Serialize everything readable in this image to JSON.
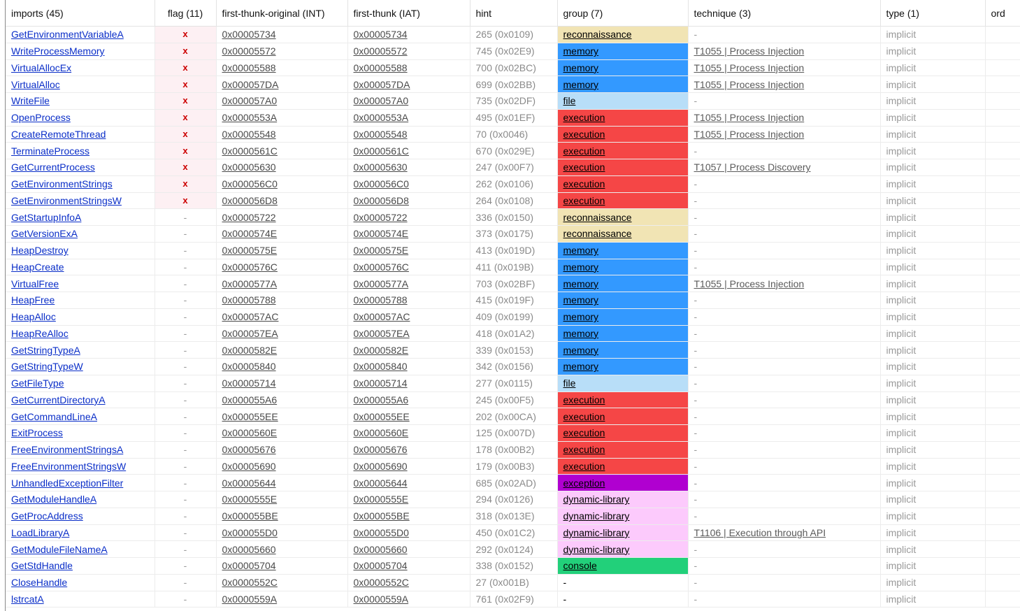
{
  "headers": {
    "imports": "imports (45)",
    "flag": "flag (11)",
    "int": "first-thunk-original (INT)",
    "iat": "first-thunk (IAT)",
    "hint": "hint",
    "group": "group (7)",
    "technique": "technique (3)",
    "type": "type (1)",
    "ordinal": "ord"
  },
  "colors": {
    "reconnaissance": "#f1e4b4",
    "memory": "#3399ff",
    "file": "#b8def8",
    "execution": "#f54646",
    "exception": "#b000d0",
    "dynamic-library": "#fccafc",
    "console": "#22d07a"
  },
  "rows": [
    {
      "name": "GetEnvironmentVariableA",
      "flag": "x",
      "int": "0x00005734",
      "iat": "0x00005734",
      "hint": "265 (0x0109)",
      "group": "reconnaissance",
      "technique": "-",
      "type": "implicit"
    },
    {
      "name": "WriteProcessMemory",
      "flag": "x",
      "int": "0x00005572",
      "iat": "0x00005572",
      "hint": "745 (0x02E9)",
      "group": "memory",
      "technique": "T1055 | Process Injection",
      "type": "implicit"
    },
    {
      "name": "VirtualAllocEx",
      "flag": "x",
      "int": "0x00005588",
      "iat": "0x00005588",
      "hint": "700 (0x02BC)",
      "group": "memory",
      "technique": "T1055 | Process Injection",
      "type": "implicit"
    },
    {
      "name": "VirtualAlloc",
      "flag": "x",
      "int": "0x000057DA",
      "iat": "0x000057DA",
      "hint": "699 (0x02BB)",
      "group": "memory",
      "technique": "T1055 | Process Injection",
      "type": "implicit"
    },
    {
      "name": "WriteFile",
      "flag": "x",
      "int": "0x000057A0",
      "iat": "0x000057A0",
      "hint": "735 (0x02DF)",
      "group": "file",
      "technique": "-",
      "type": "implicit"
    },
    {
      "name": "OpenProcess",
      "flag": "x",
      "int": "0x0000553A",
      "iat": "0x0000553A",
      "hint": "495 (0x01EF)",
      "group": "execution",
      "technique": "T1055 | Process Injection",
      "type": "implicit"
    },
    {
      "name": "CreateRemoteThread",
      "flag": "x",
      "int": "0x00005548",
      "iat": "0x00005548",
      "hint": "70 (0x0046)",
      "group": "execution",
      "technique": "T1055 | Process Injection",
      "type": "implicit"
    },
    {
      "name": "TerminateProcess",
      "flag": "x",
      "int": "0x0000561C",
      "iat": "0x0000561C",
      "hint": "670 (0x029E)",
      "group": "execution",
      "technique": "-",
      "type": "implicit"
    },
    {
      "name": "GetCurrentProcess",
      "flag": "x",
      "int": "0x00005630",
      "iat": "0x00005630",
      "hint": "247 (0x00F7)",
      "group": "execution",
      "technique": "T1057 | Process Discovery",
      "type": "implicit"
    },
    {
      "name": "GetEnvironmentStrings",
      "flag": "x",
      "int": "0x000056C0",
      "iat": "0x000056C0",
      "hint": "262 (0x0106)",
      "group": "execution",
      "technique": "-",
      "type": "implicit"
    },
    {
      "name": "GetEnvironmentStringsW",
      "flag": "x",
      "int": "0x000056D8",
      "iat": "0x000056D8",
      "hint": "264 (0x0108)",
      "group": "execution",
      "technique": "-",
      "type": "implicit"
    },
    {
      "name": "GetStartupInfoA",
      "flag": "-",
      "int": "0x00005722",
      "iat": "0x00005722",
      "hint": "336 (0x0150)",
      "group": "reconnaissance",
      "technique": "-",
      "type": "implicit"
    },
    {
      "name": "GetVersionExA",
      "flag": "-",
      "int": "0x0000574E",
      "iat": "0x0000574E",
      "hint": "373 (0x0175)",
      "group": "reconnaissance",
      "technique": "-",
      "type": "implicit"
    },
    {
      "name": "HeapDestroy",
      "flag": "-",
      "int": "0x0000575E",
      "iat": "0x0000575E",
      "hint": "413 (0x019D)",
      "group": "memory",
      "technique": "-",
      "type": "implicit"
    },
    {
      "name": "HeapCreate",
      "flag": "-",
      "int": "0x0000576C",
      "iat": "0x0000576C",
      "hint": "411 (0x019B)",
      "group": "memory",
      "technique": "-",
      "type": "implicit"
    },
    {
      "name": "VirtualFree",
      "flag": "-",
      "int": "0x0000577A",
      "iat": "0x0000577A",
      "hint": "703 (0x02BF)",
      "group": "memory",
      "technique": "T1055 | Process Injection",
      "type": "implicit"
    },
    {
      "name": "HeapFree",
      "flag": "-",
      "int": "0x00005788",
      "iat": "0x00005788",
      "hint": "415 (0x019F)",
      "group": "memory",
      "technique": "-",
      "type": "implicit"
    },
    {
      "name": "HeapAlloc",
      "flag": "-",
      "int": "0x000057AC",
      "iat": "0x000057AC",
      "hint": "409 (0x0199)",
      "group": "memory",
      "technique": "-",
      "type": "implicit"
    },
    {
      "name": "HeapReAlloc",
      "flag": "-",
      "int": "0x000057EA",
      "iat": "0x000057EA",
      "hint": "418 (0x01A2)",
      "group": "memory",
      "technique": "-",
      "type": "implicit"
    },
    {
      "name": "GetStringTypeA",
      "flag": "-",
      "int": "0x0000582E",
      "iat": "0x0000582E",
      "hint": "339 (0x0153)",
      "group": "memory",
      "technique": "-",
      "type": "implicit"
    },
    {
      "name": "GetStringTypeW",
      "flag": "-",
      "int": "0x00005840",
      "iat": "0x00005840",
      "hint": "342 (0x0156)",
      "group": "memory",
      "technique": "-",
      "type": "implicit"
    },
    {
      "name": "GetFileType",
      "flag": "-",
      "int": "0x00005714",
      "iat": "0x00005714",
      "hint": "277 (0x0115)",
      "group": "file",
      "technique": "-",
      "type": "implicit"
    },
    {
      "name": "GetCurrentDirectoryA",
      "flag": "-",
      "int": "0x000055A6",
      "iat": "0x000055A6",
      "hint": "245 (0x00F5)",
      "group": "execution",
      "technique": "-",
      "type": "implicit"
    },
    {
      "name": "GetCommandLineA",
      "flag": "-",
      "int": "0x000055EE",
      "iat": "0x000055EE",
      "hint": "202 (0x00CA)",
      "group": "execution",
      "technique": "-",
      "type": "implicit"
    },
    {
      "name": "ExitProcess",
      "flag": "-",
      "int": "0x0000560E",
      "iat": "0x0000560E",
      "hint": "125 (0x007D)",
      "group": "execution",
      "technique": "-",
      "type": "implicit"
    },
    {
      "name": "FreeEnvironmentStringsA",
      "flag": "-",
      "int": "0x00005676",
      "iat": "0x00005676",
      "hint": "178 (0x00B2)",
      "group": "execution",
      "technique": "-",
      "type": "implicit"
    },
    {
      "name": "FreeEnvironmentStringsW",
      "flag": "-",
      "int": "0x00005690",
      "iat": "0x00005690",
      "hint": "179 (0x00B3)",
      "group": "execution",
      "technique": "-",
      "type": "implicit"
    },
    {
      "name": "UnhandledExceptionFilter",
      "flag": "-",
      "int": "0x00005644",
      "iat": "0x00005644",
      "hint": "685 (0x02AD)",
      "group": "exception",
      "technique": "-",
      "type": "implicit"
    },
    {
      "name": "GetModuleHandleA",
      "flag": "-",
      "int": "0x0000555E",
      "iat": "0x0000555E",
      "hint": "294 (0x0126)",
      "group": "dynamic-library",
      "technique": "-",
      "type": "implicit"
    },
    {
      "name": "GetProcAddress",
      "flag": "-",
      "int": "0x000055BE",
      "iat": "0x000055BE",
      "hint": "318 (0x013E)",
      "group": "dynamic-library",
      "technique": "-",
      "type": "implicit"
    },
    {
      "name": "LoadLibraryA",
      "flag": "-",
      "int": "0x000055D0",
      "iat": "0x000055D0",
      "hint": "450 (0x01C2)",
      "group": "dynamic-library",
      "technique": "T1106 | Execution through API",
      "type": "implicit"
    },
    {
      "name": "GetModuleFileNameA",
      "flag": "-",
      "int": "0x00005660",
      "iat": "0x00005660",
      "hint": "292 (0x0124)",
      "group": "dynamic-library",
      "technique": "-",
      "type": "implicit"
    },
    {
      "name": "GetStdHandle",
      "flag": "-",
      "int": "0x00005704",
      "iat": "0x00005704",
      "hint": "338 (0x0152)",
      "group": "console",
      "technique": "-",
      "type": "implicit"
    },
    {
      "name": "CloseHandle",
      "flag": "-",
      "int": "0x0000552C",
      "iat": "0x0000552C",
      "hint": "27 (0x001B)",
      "group": "-",
      "technique": "-",
      "type": "implicit"
    },
    {
      "name": "lstrcatA",
      "flag": "-",
      "int": "0x0000559A",
      "iat": "0x0000559A",
      "hint": "761 (0x02F9)",
      "group": "-",
      "technique": "-",
      "type": "implicit"
    }
  ]
}
